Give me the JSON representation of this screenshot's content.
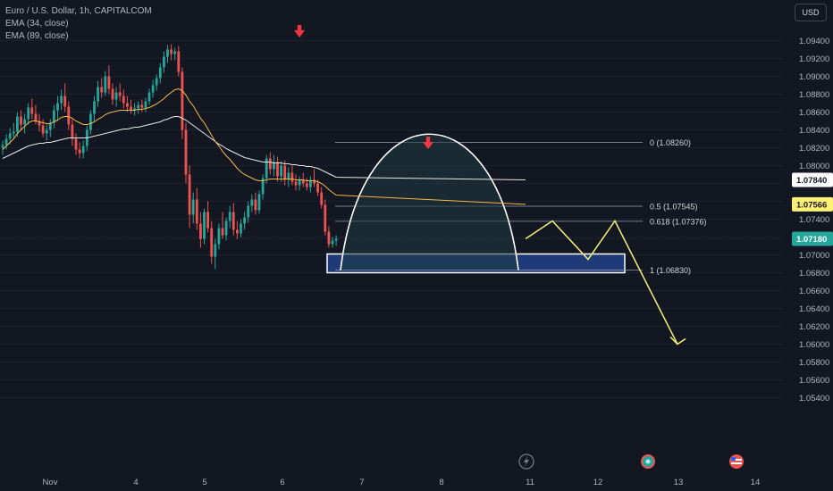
{
  "legend": {
    "symbol": "Euro / U.S. Dollar, 1h, CAPITALCOM",
    "ema34": "EMA (34, close)",
    "ema89": "EMA (89, close)"
  },
  "currency": "USD",
  "colors": {
    "background": "#131722",
    "up": "#26a69a",
    "down": "#ef5350",
    "ema34": "#f5b84a",
    "ema89": "#e8e8e8",
    "projection": "#f5f07a",
    "arrow": "#f23645",
    "zone_fill": "#1e3a78"
  },
  "chart_data": {
    "type": "candlestick",
    "y_ticks": [
      "1.09400",
      "1.09200",
      "1.09000",
      "1.08800",
      "1.08600",
      "1.08400",
      "1.08200",
      "1.08000",
      "1.07800",
      "1.07600",
      "1.07400",
      "1.07200",
      "1.07000",
      "1.06800",
      "1.06600",
      "1.06400",
      "1.06200",
      "1.06000",
      "1.05800",
      "1.05600",
      "1.05400"
    ],
    "ylim": [
      1.054,
      1.096
    ],
    "x_ticks": [
      "Nov",
      "4",
      "5",
      "6",
      "7",
      "8",
      "11",
      "12",
      "13",
      "14"
    ],
    "price_tags": [
      {
        "label": "1.07840",
        "value": 1.0784,
        "style": "white"
      },
      {
        "label": "1.07566",
        "value": 1.07566,
        "style": "yellow"
      },
      {
        "label": "1.07180",
        "value": 1.0718,
        "style": "green"
      }
    ],
    "fib_levels": [
      {
        "label": "0 (1.08260)",
        "value": 1.0826
      },
      {
        "label": "0.5 (1.07545)",
        "value": 1.07545
      },
      {
        "label": "0.618 (1.07376)",
        "value": 1.07376
      },
      {
        "label": "1 (1.06830)",
        "value": 1.0683
      }
    ],
    "candles": [
      [
        1.082,
        1.0828,
        1.0812,
        1.0823
      ],
      [
        1.0823,
        1.0835,
        1.0818,
        1.083
      ],
      [
        1.083,
        1.0842,
        1.0824,
        1.0836
      ],
      [
        1.0836,
        1.0848,
        1.083,
        1.0838
      ],
      [
        1.0838,
        1.086,
        1.0832,
        1.0855
      ],
      [
        1.0855,
        1.0862,
        1.084,
        1.0846
      ],
      [
        1.0846,
        1.0858,
        1.0836,
        1.0852
      ],
      [
        1.0852,
        1.087,
        1.0846,
        1.0865
      ],
      [
        1.0865,
        1.0875,
        1.0852,
        1.0858
      ],
      [
        1.0858,
        1.0868,
        1.0846,
        1.085
      ],
      [
        1.085,
        1.0858,
        1.0838,
        1.0845
      ],
      [
        1.0845,
        1.0852,
        1.0832,
        1.0836
      ],
      [
        1.0836,
        1.0846,
        1.0828,
        1.084
      ],
      [
        1.084,
        1.0852,
        1.0832,
        1.0848
      ],
      [
        1.0848,
        1.0868,
        1.0842,
        1.0862
      ],
      [
        1.0862,
        1.0878,
        1.085,
        1.087
      ],
      [
        1.087,
        1.0885,
        1.0862,
        1.0878
      ],
      [
        1.0878,
        1.0892,
        1.086,
        1.0866
      ],
      [
        1.0866,
        1.0872,
        1.084,
        1.0846
      ],
      [
        1.0846,
        1.0852,
        1.0822,
        1.083
      ],
      [
        1.083,
        1.0836,
        1.0812,
        1.0818
      ],
      [
        1.0818,
        1.0826,
        1.0808,
        1.0814
      ],
      [
        1.0814,
        1.0828,
        1.0808,
        1.0822
      ],
      [
        1.0822,
        1.0845,
        1.0816,
        1.084
      ],
      [
        1.084,
        1.0862,
        1.0835,
        1.0858
      ],
      [
        1.0858,
        1.0878,
        1.085,
        1.0872
      ],
      [
        1.0872,
        1.0895,
        1.0866,
        1.0888
      ],
      [
        1.0888,
        1.0898,
        1.0876,
        1.0882
      ],
      [
        1.0882,
        1.0906,
        1.0878,
        1.09
      ],
      [
        1.09,
        1.0912,
        1.088,
        1.0886
      ],
      [
        1.0886,
        1.0892,
        1.0868,
        1.0874
      ],
      [
        1.0874,
        1.0888,
        1.0866,
        1.0882
      ],
      [
        1.0882,
        1.0892,
        1.0872,
        1.0878
      ],
      [
        1.0878,
        1.0885,
        1.0864,
        1.087
      ],
      [
        1.087,
        1.0878,
        1.086,
        1.0866
      ],
      [
        1.0866,
        1.0874,
        1.0858,
        1.0862
      ],
      [
        1.0862,
        1.087,
        1.0856,
        1.0864
      ],
      [
        1.0864,
        1.0872,
        1.0858,
        1.0868
      ],
      [
        1.0868,
        1.0874,
        1.086,
        1.0865
      ],
      [
        1.0865,
        1.0876,
        1.086,
        1.0872
      ],
      [
        1.0872,
        1.0886,
        1.0868,
        1.0882
      ],
      [
        1.0882,
        1.0896,
        1.0876,
        1.089
      ],
      [
        1.089,
        1.0902,
        1.0884,
        1.0898
      ],
      [
        1.0898,
        1.0915,
        1.0892,
        1.091
      ],
      [
        1.091,
        1.0928,
        1.0904,
        1.0922
      ],
      [
        1.0922,
        1.0935,
        1.0915,
        1.093
      ],
      [
        1.093,
        1.0936,
        1.0918,
        1.0925
      ],
      [
        1.0925,
        1.0932,
        1.0918,
        1.0928
      ],
      [
        1.0928,
        1.0934,
        1.09,
        1.0905
      ],
      [
        1.0905,
        1.091,
        1.083,
        1.084
      ],
      [
        1.084,
        1.0848,
        1.078,
        1.079
      ],
      [
        1.079,
        1.08,
        1.073,
        1.0745
      ],
      [
        1.0745,
        1.077,
        1.0735,
        1.0762
      ],
      [
        1.0762,
        1.0775,
        1.0728,
        1.0735
      ],
      [
        1.0735,
        1.0748,
        1.0708,
        1.0718
      ],
      [
        1.0718,
        1.0752,
        1.0712,
        1.0748
      ],
      [
        1.0748,
        1.076,
        1.0725,
        1.073
      ],
      [
        1.073,
        1.0738,
        1.069,
        1.0698
      ],
      [
        1.0698,
        1.0718,
        1.0684,
        1.0712
      ],
      [
        1.0712,
        1.0735,
        1.0706,
        1.073
      ],
      [
        1.073,
        1.0748,
        1.0718,
        1.0722
      ],
      [
        1.0722,
        1.0742,
        1.0716,
        1.0738
      ],
      [
        1.0738,
        1.0755,
        1.073,
        1.0748
      ],
      [
        1.0748,
        1.0758,
        1.0722,
        1.0728
      ],
      [
        1.0728,
        1.0738,
        1.0718,
        1.0724
      ],
      [
        1.0724,
        1.074,
        1.072,
        1.0735
      ],
      [
        1.0735,
        1.0748,
        1.0728,
        1.0742
      ],
      [
        1.0742,
        1.076,
        1.0736,
        1.0755
      ],
      [
        1.0755,
        1.0768,
        1.0748,
        1.0762
      ],
      [
        1.0762,
        1.077,
        1.0745,
        1.075
      ],
      [
        1.075,
        1.0772,
        1.0746,
        1.0768
      ],
      [
        1.0768,
        1.079,
        1.0762,
        1.0786
      ],
      [
        1.0786,
        1.0812,
        1.078,
        1.0808
      ],
      [
        1.0808,
        1.0815,
        1.079,
        1.0796
      ],
      [
        1.0796,
        1.0812,
        1.0788,
        1.0804
      ],
      [
        1.0804,
        1.081,
        1.0782,
        1.0788
      ],
      [
        1.0788,
        1.0805,
        1.0782,
        1.08
      ],
      [
        1.08,
        1.0806,
        1.0778,
        1.0784
      ],
      [
        1.0784,
        1.0798,
        1.0776,
        1.0792
      ],
      [
        1.0792,
        1.08,
        1.0778,
        1.0782
      ],
      [
        1.0782,
        1.079,
        1.0772,
        1.0778
      ],
      [
        1.0778,
        1.0788,
        1.0772,
        1.0784
      ],
      [
        1.0784,
        1.0792,
        1.0776,
        1.078
      ],
      [
        1.078,
        1.0786,
        1.0772,
        1.0776
      ],
      [
        1.0776,
        1.0788,
        1.077,
        1.0784
      ],
      [
        1.0784,
        1.0796,
        1.0776,
        1.078
      ],
      [
        1.078,
        1.0784,
        1.0766,
        1.077
      ],
      [
        1.077,
        1.0776,
        1.0752,
        1.0756
      ],
      [
        1.0756,
        1.0762,
        1.0722,
        1.0726
      ],
      [
        1.0726,
        1.0732,
        1.0708,
        1.0712
      ],
      [
        1.0712,
        1.072,
        1.0708,
        1.0716
      ],
      [
        1.0716,
        1.0722,
        1.071,
        1.0718
      ]
    ],
    "ema34": [
      1.0818,
      1.0822,
      1.0826,
      1.083,
      1.0836,
      1.084,
      1.0844,
      1.0848,
      1.085,
      1.085,
      1.0849,
      1.0848,
      1.0847,
      1.0847,
      1.0849,
      1.0851,
      1.0854,
      1.0855,
      1.0855,
      1.0853,
      1.085,
      1.0848,
      1.0846,
      1.0846,
      1.0847,
      1.0849,
      1.0852,
      1.0854,
      1.0857,
      1.0859,
      1.086,
      1.0861,
      1.0862,
      1.0862,
      1.0862,
      1.0862,
      1.0862,
      1.0863,
      1.0863,
      1.0864,
      1.0865,
      1.0867,
      1.0869,
      1.0872,
      1.0875,
      1.0879,
      1.0882,
      1.0885,
      1.0886,
      1.0884,
      1.0879,
      1.0872,
      1.0867,
      1.086,
      1.0853,
      1.0848,
      1.0841,
      1.0834,
      1.0827,
      1.0822,
      1.0816,
      1.0811,
      1.0807,
      1.0802,
      1.0797,
      1.0793,
      1.079,
      1.0788,
      1.0786,
      1.0784,
      1.0783,
      1.0783,
      1.0784,
      1.0785,
      1.0785,
      1.0785,
      1.0785,
      1.0785,
      1.0785,
      1.0785,
      1.0784,
      1.0784,
      1.0784,
      1.0783,
      1.0783,
      1.0783,
      1.0782,
      1.078,
      1.0777,
      1.0773,
      1.077,
      1.0767
    ],
    "ema89": [
      1.0808,
      1.081,
      1.0812,
      1.0814,
      1.0816,
      1.0818,
      1.082,
      1.0822,
      1.0823,
      1.0824,
      1.0825,
      1.0825,
      1.0826,
      1.0826,
      1.0827,
      1.0828,
      1.0829,
      1.083,
      1.0831,
      1.0831,
      1.0831,
      1.0831,
      1.0831,
      1.0831,
      1.0832,
      1.0833,
      1.0834,
      1.0835,
      1.0836,
      1.0837,
      1.0838,
      1.0839,
      1.084,
      1.0841,
      1.0841,
      1.0842,
      1.0843,
      1.0843,
      1.0844,
      1.0845,
      1.0846,
      1.0847,
      1.0848,
      1.0849,
      1.0851,
      1.0852,
      1.0854,
      1.0855,
      1.0855,
      1.0853,
      1.0851,
      1.0848,
      1.0845,
      1.0842,
      1.0839,
      1.0836,
      1.0833,
      1.083,
      1.0827,
      1.0824,
      1.0822,
      1.0819,
      1.0817,
      1.0815,
      1.0813,
      1.0811,
      1.0809,
      1.0808,
      1.0807,
      1.0806,
      1.0805,
      1.0804,
      1.0804,
      1.0804,
      1.0803,
      1.0803,
      1.0803,
      1.0802,
      1.0802,
      1.0801,
      1.0801,
      1.08,
      1.08,
      1.0799,
      1.0799,
      1.0798,
      1.0797,
      1.0795,
      1.0793,
      1.0791,
      1.0789,
      1.0787
    ],
    "projection": [
      [
        1.0718,
        0
      ],
      [
        1.0738,
        3
      ],
      [
        1.0695,
        7
      ],
      [
        1.0738,
        10
      ],
      [
        1.06,
        17
      ]
    ],
    "target_zone": {
      "low": 1.0683,
      "high": 1.0698,
      "start": -10,
      "end": 23
    },
    "arch": {
      "start": 1.0683,
      "peak": 1.0826,
      "end": 1.0683
    }
  }
}
